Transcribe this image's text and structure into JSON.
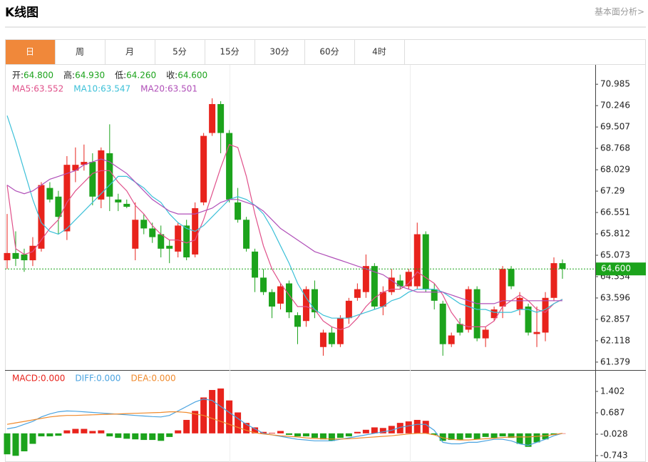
{
  "header": {
    "title": "K线图",
    "link": "基本面分析>"
  },
  "tabs": [
    "日",
    "周",
    "月",
    "5分",
    "15分",
    "30分",
    "60分",
    "4时"
  ],
  "active_tab": 0,
  "chart_data": [
    {
      "type": "candlestick",
      "info": [
        {
          "label": "开:",
          "value": "64.800"
        },
        {
          "label": "高:",
          "value": "64.930"
        },
        {
          "label": "低:",
          "value": "64.260"
        },
        {
          "label": "收:",
          "value": "64.600"
        }
      ],
      "up_color": "#e8231c",
      "down_color": "#1ca31c",
      "open": [
        64.9,
        65.15,
        65.1,
        64.9,
        65.3,
        67.4,
        67.1,
        65.9,
        68.0,
        68.2,
        68.3,
        67.0,
        68.6,
        67.0,
        66.85,
        65.3,
        66.3,
        66.0,
        65.8,
        65.4,
        65.2,
        66.1,
        65.1,
        66.9,
        69.3,
        70.3,
        69.3,
        66.9,
        66.3,
        65.2,
        64.3,
        63.8,
        63.4,
        64.1,
        63.0,
        62.8,
        63.9,
        61.9,
        62.4,
        62.0,
        62.9,
        63.6,
        63.8,
        64.7,
        63.3,
        63.8,
        64.2,
        64.0,
        64.0,
        65.8,
        63.9,
        63.4,
        62.0,
        62.7,
        62.5,
        63.9,
        62.2,
        62.9,
        63.3,
        64.6,
        63.2,
        63.3,
        62.35,
        62.4,
        63.6,
        64.8
      ],
      "high": [
        66.5,
        65.9,
        65.3,
        65.7,
        67.6,
        67.6,
        67.3,
        68.5,
        68.8,
        68.9,
        68.6,
        68.8,
        69.6,
        67.2,
        67.0,
        66.9,
        66.5,
        66.2,
        66.1,
        65.6,
        66.2,
        66.3,
        66.9,
        69.3,
        70.5,
        70.4,
        69.4,
        67.4,
        66.4,
        65.3,
        64.6,
        63.9,
        64.1,
        64.2,
        63.1,
        64.0,
        64.2,
        62.5,
        62.6,
        63.0,
        63.6,
        64.1,
        65.1,
        64.8,
        64.0,
        64.6,
        64.4,
        64.6,
        66.2,
        65.9,
        64.1,
        63.5,
        62.4,
        62.9,
        64.0,
        64.0,
        62.6,
        63.3,
        64.7,
        64.7,
        63.8,
        63.4,
        63.3,
        63.8,
        65.0,
        64.93
      ],
      "low": [
        64.6,
        64.7,
        64.5,
        64.7,
        65.2,
        66.9,
        65.8,
        65.6,
        67.6,
        68.0,
        66.8,
        66.7,
        66.6,
        66.6,
        66.7,
        64.9,
        65.8,
        65.5,
        65.0,
        64.8,
        65.0,
        64.9,
        65.0,
        66.8,
        69.2,
        68.6,
        66.9,
        66.2,
        65.2,
        63.8,
        63.7,
        62.9,
        63.2,
        62.9,
        62.0,
        62.6,
        62.9,
        61.6,
        61.9,
        61.9,
        62.7,
        63.5,
        63.6,
        63.2,
        63.0,
        63.7,
        63.9,
        63.9,
        63.9,
        63.8,
        63.2,
        61.6,
        61.9,
        62.3,
        62.4,
        62.1,
        61.9,
        62.8,
        62.9,
        63.9,
        63.0,
        62.3,
        61.9,
        62.1,
        63.5,
        64.26
      ],
      "close": [
        65.15,
        64.95,
        64.9,
        65.4,
        67.5,
        67.0,
        66.4,
        68.2,
        68.2,
        68.3,
        67.1,
        68.7,
        67.1,
        66.9,
        66.75,
        66.3,
        66.0,
        65.7,
        65.3,
        65.3,
        66.1,
        65.0,
        66.7,
        69.2,
        70.3,
        69.3,
        67.0,
        66.3,
        65.3,
        64.3,
        63.8,
        63.3,
        64.0,
        63.1,
        62.6,
        63.9,
        63.1,
        62.4,
        62.0,
        62.9,
        63.5,
        63.9,
        64.7,
        63.3,
        63.8,
        64.3,
        64.0,
        64.5,
        65.8,
        63.9,
        63.5,
        62.0,
        62.3,
        62.4,
        63.9,
        62.2,
        62.5,
        63.2,
        64.6,
        64.0,
        63.6,
        62.4,
        62.42,
        63.6,
        64.8,
        64.6
      ],
      "series": [
        {
          "name": "MA5:",
          "latest": "63.552",
          "color": "#e0508a",
          "values": [
            67.5,
            65.3,
            65.1,
            65.2,
            65.6,
            66.0,
            66.3,
            66.9,
            67.3,
            67.6,
            67.9,
            68.0,
            68.0,
            67.6,
            67.3,
            66.8,
            66.5,
            66.1,
            65.8,
            65.6,
            65.6,
            65.5,
            65.6,
            66.3,
            67.2,
            68.1,
            68.9,
            68.8,
            67.8,
            66.5,
            65.4,
            64.6,
            64.1,
            63.7,
            63.3,
            63.3,
            63.2,
            62.8,
            62.6,
            62.5,
            62.6,
            62.9,
            63.3,
            63.6,
            63.8,
            63.9,
            63.9,
            64.1,
            64.5,
            64.3,
            64.1,
            63.7,
            63.1,
            62.7,
            62.6,
            62.6,
            62.6,
            62.8,
            63.3,
            63.5,
            63.7,
            63.5,
            63.2,
            63.1,
            63.4,
            63.552
          ]
        },
        {
          "name": "MA10:",
          "latest": "63.547",
          "color": "#3cc0d8",
          "values": [
            69.9,
            69.0,
            68.0,
            67.0,
            66.2,
            65.9,
            65.8,
            66.0,
            66.3,
            66.6,
            66.9,
            67.2,
            67.5,
            67.8,
            67.8,
            67.6,
            67.4,
            67.1,
            66.9,
            66.5,
            66.2,
            66.0,
            65.9,
            66.1,
            66.4,
            66.7,
            67.0,
            67.1,
            67.0,
            66.8,
            66.5,
            66.0,
            65.4,
            64.8,
            64.1,
            63.6,
            63.2,
            63.0,
            62.9,
            62.9,
            62.9,
            63.0,
            63.1,
            63.2,
            63.3,
            63.5,
            63.6,
            63.8,
            63.9,
            63.9,
            63.9,
            63.8,
            63.6,
            63.4,
            63.3,
            63.2,
            63.2,
            63.1,
            63.1,
            63.1,
            63.2,
            63.2,
            63.1,
            63.2,
            63.4,
            63.547
          ]
        },
        {
          "name": "MA20:",
          "latest": "63.501",
          "color": "#b04fb8",
          "values": [
            67.5,
            67.3,
            67.2,
            67.3,
            67.5,
            67.7,
            67.8,
            67.9,
            68.0,
            68.2,
            68.3,
            68.4,
            68.3,
            68.1,
            67.9,
            67.6,
            67.3,
            67.0,
            66.8,
            66.6,
            66.5,
            66.5,
            66.5,
            66.6,
            66.7,
            66.9,
            67.0,
            67.0,
            66.9,
            66.8,
            66.6,
            66.3,
            66.0,
            65.8,
            65.6,
            65.4,
            65.2,
            65.1,
            65.0,
            64.9,
            64.8,
            64.7,
            64.6,
            64.5,
            64.4,
            64.2,
            64.0,
            63.9,
            63.8,
            63.8,
            63.8,
            63.8,
            63.7,
            63.6,
            63.5,
            63.4,
            63.4,
            63.4,
            63.5,
            63.5,
            63.5,
            63.5,
            63.5,
            63.5,
            63.5,
            63.501
          ]
        }
      ],
      "current_price": {
        "value": 64.6,
        "label": "64.600"
      },
      "ylim": [
        61.13,
        71.63
      ],
      "yticks": [
        70.985,
        70.246,
        69.507,
        68.768,
        68.029,
        67.29,
        66.551,
        65.812,
        65.073,
        64.334,
        63.596,
        62.857,
        62.118,
        61.379
      ]
    },
    {
      "type": "macd",
      "histogram": {
        "name": "MACD:",
        "latest": "0.000",
        "color": "#e8231c",
        "up_color": "#e8231c",
        "down_color": "#1ca31c",
        "values": [
          -0.7,
          -0.75,
          -0.6,
          -0.35,
          -0.1,
          -0.1,
          -0.08,
          0.1,
          0.15,
          0.15,
          0.08,
          0.1,
          -0.1,
          -0.15,
          -0.18,
          -0.2,
          -0.22,
          -0.22,
          -0.25,
          -0.12,
          0.1,
          0.45,
          0.75,
          1.2,
          1.45,
          1.5,
          1.1,
          0.7,
          0.35,
          0.2,
          0.05,
          0.02,
          0.08,
          -0.05,
          -0.1,
          -0.1,
          -0.15,
          -0.2,
          -0.25,
          -0.15,
          -0.1,
          0.05,
          0.12,
          0.2,
          0.18,
          0.25,
          0.35,
          0.4,
          0.45,
          0.42,
          -0.05,
          -0.25,
          -0.22,
          -0.22,
          -0.15,
          -0.2,
          -0.12,
          -0.15,
          -0.1,
          -0.15,
          -0.35,
          -0.45,
          -0.3,
          -0.2,
          -0.05,
          0
        ]
      },
      "series": [
        {
          "name": "DIFF:",
          "latest": "0.000",
          "color": "#4aa3e0",
          "values": [
            0.15,
            0.2,
            0.3,
            0.4,
            0.55,
            0.65,
            0.72,
            0.75,
            0.74,
            0.72,
            0.7,
            0.68,
            0.66,
            0.64,
            0.62,
            0.6,
            0.58,
            0.56,
            0.55,
            0.6,
            0.75,
            0.9,
            1.05,
            1.15,
            1.1,
            0.9,
            0.7,
            0.5,
            0.3,
            0.15,
            0.0,
            -0.05,
            -0.1,
            -0.15,
            -0.2,
            -0.22,
            -0.25,
            -0.25,
            -0.25,
            -0.2,
            -0.15,
            -0.1,
            -0.05,
            0.0,
            0.05,
            0.1,
            0.2,
            0.25,
            0.3,
            0.3,
            0.1,
            -0.3,
            -0.35,
            -0.35,
            -0.3,
            -0.3,
            -0.25,
            -0.2,
            -0.2,
            -0.25,
            -0.35,
            -0.4,
            -0.3,
            -0.2,
            -0.08,
            0.0
          ]
        },
        {
          "name": "DEA:",
          "latest": "0.000",
          "color": "#f08a2c",
          "values": [
            0.3,
            0.35,
            0.4,
            0.45,
            0.5,
            0.55,
            0.58,
            0.6,
            0.6,
            0.61,
            0.62,
            0.63,
            0.64,
            0.65,
            0.66,
            0.67,
            0.68,
            0.69,
            0.7,
            0.72,
            0.72,
            0.7,
            0.65,
            0.6,
            0.5,
            0.4,
            0.3,
            0.2,
            0.1,
            0.02,
            -0.02,
            -0.05,
            -0.08,
            -0.1,
            -0.12,
            -0.15,
            -0.17,
            -0.18,
            -0.19,
            -0.19,
            -0.18,
            -0.16,
            -0.14,
            -0.12,
            -0.1,
            -0.08,
            -0.05,
            -0.02,
            0.0,
            0.0,
            -0.05,
            -0.15,
            -0.2,
            -0.22,
            -0.22,
            -0.2,
            -0.18,
            -0.16,
            -0.14,
            -0.12,
            -0.12,
            -0.12,
            -0.1,
            -0.08,
            -0.04,
            0.0
          ]
        }
      ],
      "ylim": [
        -0.957,
        2.093
      ],
      "yticks": [
        1.402,
        0.687,
        -0.028,
        -0.743
      ]
    }
  ]
}
